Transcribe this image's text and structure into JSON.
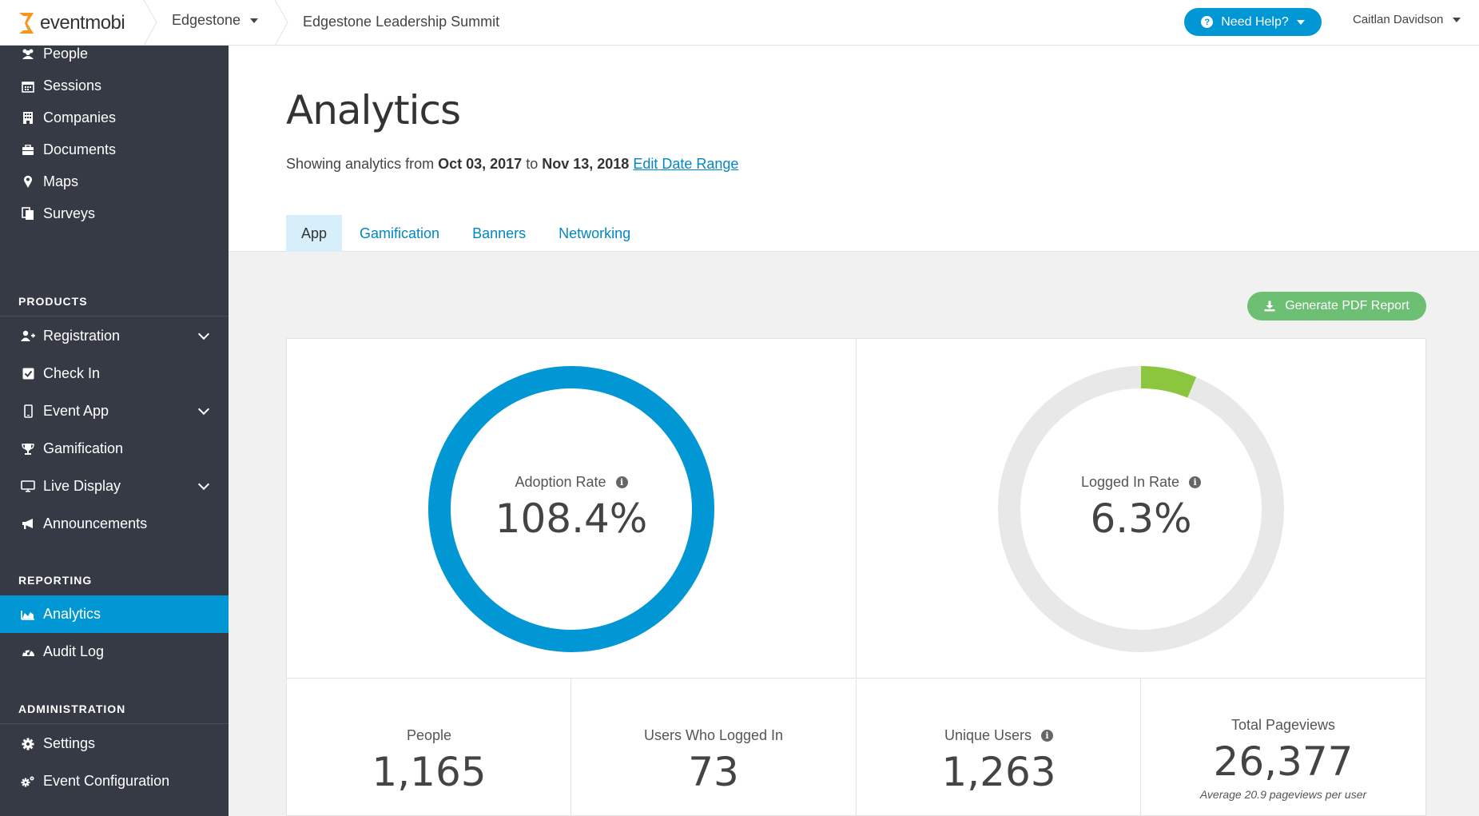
{
  "header": {
    "logo_text": "eventmobi",
    "org_name": "Edgestone",
    "event_title": "Edgestone Leadership Summit",
    "help_label": "Need Help?",
    "user_name": "Caitlan Davidson"
  },
  "sidebar": {
    "items_top": [
      {
        "label": "People",
        "icon": "people-icon"
      },
      {
        "label": "Sessions",
        "icon": "calendar-icon"
      },
      {
        "label": "Companies",
        "icon": "building-icon"
      },
      {
        "label": "Documents",
        "icon": "briefcase-icon"
      },
      {
        "label": "Maps",
        "icon": "map-pin-icon"
      },
      {
        "label": "Surveys",
        "icon": "clipboard-icon"
      }
    ],
    "products_heading": "PRODUCTS",
    "products": [
      {
        "label": "Registration",
        "icon": "user-plus-icon",
        "expandable": true
      },
      {
        "label": "Check In",
        "icon": "checkbox-icon",
        "expandable": false
      },
      {
        "label": "Event App",
        "icon": "mobile-icon",
        "expandable": true
      },
      {
        "label": "Gamification",
        "icon": "trophy-icon",
        "expandable": false
      },
      {
        "label": "Live Display",
        "icon": "monitor-icon",
        "expandable": true
      },
      {
        "label": "Announcements",
        "icon": "megaphone-icon",
        "expandable": false
      }
    ],
    "reporting_heading": "REPORTING",
    "reporting": [
      {
        "label": "Analytics",
        "icon": "area-chart-icon",
        "active": true
      },
      {
        "label": "Audit Log",
        "icon": "dashboard-icon",
        "active": false
      }
    ],
    "administration_heading": "ADMINISTRATION",
    "administration": [
      {
        "label": "Settings",
        "icon": "gear-icon"
      },
      {
        "label": "Event Configuration",
        "icon": "gears-icon"
      }
    ]
  },
  "main": {
    "title": "Analytics",
    "date_prefix": "Showing analytics from",
    "date_from": "Oct 03, 2017",
    "date_to_word": "to",
    "date_to": "Nov 13, 2018",
    "edit_date_link": "Edit Date Range",
    "tabs": [
      {
        "label": "App",
        "active": true
      },
      {
        "label": "Gamification",
        "active": false
      },
      {
        "label": "Banners",
        "active": false
      },
      {
        "label": "Networking",
        "active": false
      }
    ],
    "pdf_button": "Generate PDF Report"
  },
  "metrics": {
    "adoption": {
      "label": "Adoption Rate",
      "value": "108.4%",
      "fill_fraction": 1.0,
      "color": "#0097d4"
    },
    "logged_in": {
      "label": "Logged In Rate",
      "value": "6.3%",
      "fill_fraction": 0.063,
      "color": "#8cc63f"
    },
    "people": {
      "label": "People",
      "value": "1,165"
    },
    "users_logged_in": {
      "label": "Users Who Logged In",
      "value": "73"
    },
    "unique_users": {
      "label": "Unique Users",
      "value": "1,263"
    },
    "total_pageviews": {
      "label": "Total Pageviews",
      "value": "26,377",
      "sub": "Average 20.9 pageviews per user"
    }
  },
  "colors": {
    "accent": "#0097d4",
    "sidebar_bg": "#363a45",
    "success": "#6cbf73",
    "ring_track": "#e8e8e8"
  }
}
